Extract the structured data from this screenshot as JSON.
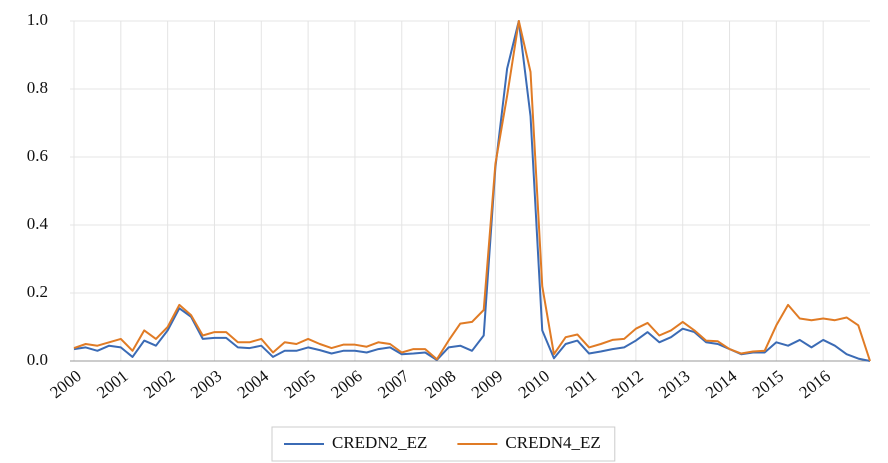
{
  "chart_data": {
    "type": "line",
    "categories": [
      "2000",
      null,
      null,
      null,
      "2001",
      null,
      null,
      null,
      "2002",
      null,
      null,
      null,
      "2003",
      null,
      null,
      null,
      "2004",
      null,
      null,
      null,
      "2005",
      null,
      null,
      null,
      "2006",
      null,
      null,
      null,
      "2007",
      null,
      null,
      null,
      "2008",
      null,
      null,
      null,
      "2009",
      null,
      null,
      null,
      "2010",
      null,
      null,
      null,
      "2011",
      null,
      null,
      null,
      "2012",
      null,
      null,
      null,
      "2013",
      null,
      null,
      null,
      "2014",
      null,
      null,
      null,
      "2015",
      null,
      null,
      null,
      "2016",
      null,
      null,
      null,
      null
    ],
    "series": [
      {
        "name": "CREDN2_EZ",
        "color": "#3b6bb5",
        "values": [
          0.035,
          0.04,
          0.03,
          0.045,
          0.04,
          0.012,
          0.06,
          0.045,
          0.09,
          0.155,
          0.13,
          0.065,
          0.068,
          0.068,
          0.04,
          0.038,
          0.045,
          0.012,
          0.03,
          0.03,
          0.04,
          0.032,
          0.022,
          0.03,
          0.03,
          0.025,
          0.035,
          0.04,
          0.02,
          0.022,
          0.025,
          0.003,
          0.04,
          0.045,
          0.03,
          0.075,
          0.57,
          0.86,
          1.0,
          0.72,
          0.09,
          0.008,
          0.05,
          0.06,
          0.022,
          0.028,
          0.035,
          0.04,
          0.06,
          0.085,
          0.055,
          0.07,
          0.095,
          0.085,
          0.055,
          0.05,
          0.035,
          0.02,
          0.025,
          0.025,
          0.055,
          0.045,
          0.062,
          0.04,
          0.062,
          0.045,
          0.02,
          0.007,
          0.0
        ]
      },
      {
        "name": "CREDN4_EZ",
        "color": "#e07b25",
        "values": [
          0.038,
          0.05,
          0.045,
          0.055,
          0.065,
          0.03,
          0.09,
          0.065,
          0.1,
          0.165,
          0.135,
          0.075,
          0.085,
          0.085,
          0.055,
          0.055,
          0.065,
          0.025,
          0.055,
          0.05,
          0.065,
          0.05,
          0.038,
          0.048,
          0.048,
          0.042,
          0.055,
          0.05,
          0.025,
          0.035,
          0.035,
          0.005,
          0.06,
          0.11,
          0.115,
          0.15,
          0.58,
          0.78,
          1.0,
          0.85,
          0.22,
          0.02,
          0.07,
          0.078,
          0.04,
          0.05,
          0.062,
          0.065,
          0.095,
          0.112,
          0.075,
          0.09,
          0.115,
          0.09,
          0.06,
          0.058,
          0.035,
          0.022,
          0.028,
          0.03,
          0.105,
          0.165,
          0.125,
          0.12,
          0.125,
          0.12,
          0.128,
          0.105,
          0.0
        ]
      }
    ],
    "ylim": [
      0,
      1
    ],
    "yticks": [
      {
        "value": 0,
        "label": "0.0"
      },
      0.2,
      0.4,
      0.6,
      0.8,
      {
        "value": 1,
        "label": "1.0"
      }
    ],
    "grid": true,
    "legend": "bottom"
  }
}
